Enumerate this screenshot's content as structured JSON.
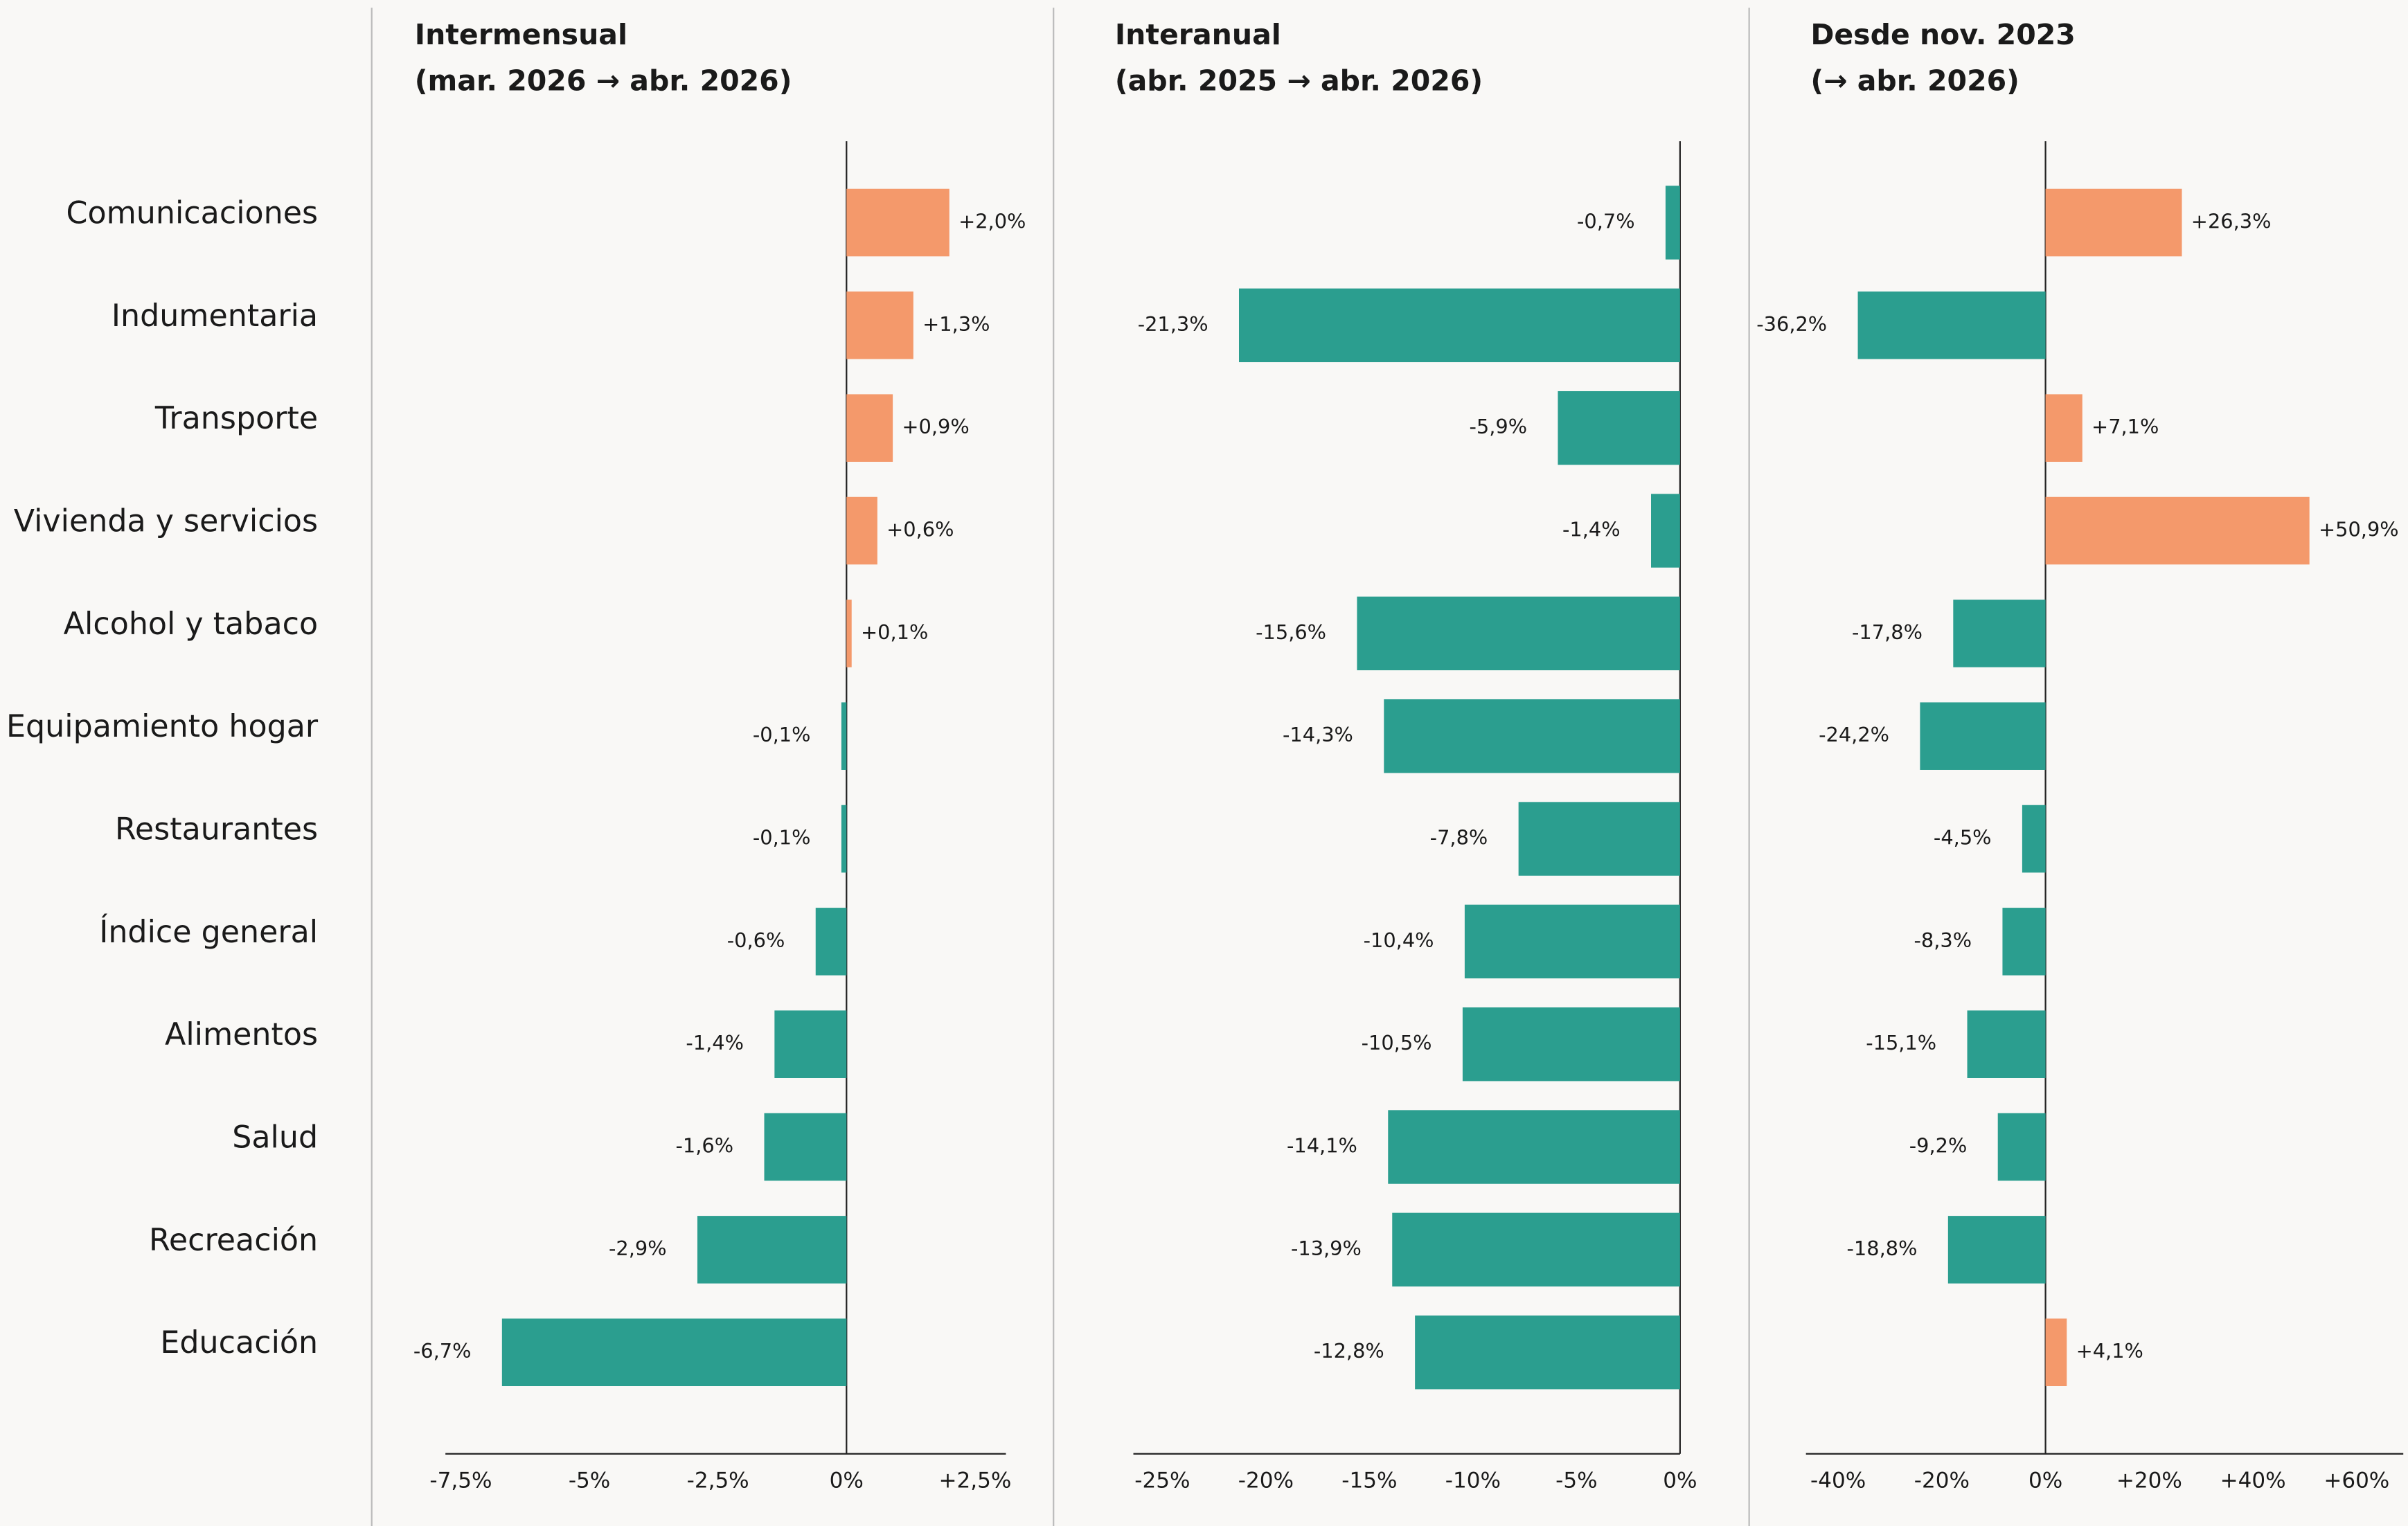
{
  "categories": [
    "Comunicaciones",
    "Indumentaria",
    "Transporte",
    "Vivienda y servicios",
    "Alcohol y tabaco",
    "Equipamiento hogar",
    "Restaurantes",
    "Índice general",
    "Alimentos",
    "Salud",
    "Recreación",
    "Educación"
  ],
  "chart_data": [
    {
      "type": "bar",
      "orientation": "horizontal",
      "title": [
        "Intermensual",
        "(mar. 2026 → abr. 2026)"
      ],
      "positive_color": "#f4996b",
      "negative_color": "#2b9e8f",
      "values": [
        2.0,
        1.3,
        0.9,
        0.6,
        0.1,
        -0.1,
        -0.1,
        -0.6,
        -1.4,
        -1.6,
        -2.9,
        -6.7
      ],
      "value_labels": [
        "+2,0%",
        "+1,3%",
        "+0,9%",
        "+0,6%",
        "+0,1%",
        "-0,1%",
        "-0,1%",
        "-0,6%",
        "-1,4%",
        "-1,6%",
        "-2,9%",
        "-6,7%"
      ],
      "xlim": [
        -7.8,
        3.1
      ],
      "xticks": [
        {
          "value": -7.5,
          "label": "-7,5%"
        },
        {
          "value": -5,
          "label": "-5%"
        },
        {
          "value": -2.5,
          "label": "-2,5%"
        },
        {
          "value": 0,
          "label": "0%"
        },
        {
          "value": 2.5,
          "label": "+2,5%"
        }
      ]
    },
    {
      "type": "bar",
      "orientation": "horizontal",
      "title": [
        "Interanual",
        "(abr. 2025 → abr. 2026)"
      ],
      "positive_color": "#f4996b",
      "negative_color": "#2b9e8f",
      "values": [
        -0.7,
        -21.3,
        -5.9,
        -1.4,
        -15.6,
        -14.3,
        -7.8,
        -10.4,
        -10.5,
        -14.1,
        -13.9,
        -12.8
      ],
      "value_labels": [
        "-0,7%",
        "-21,3%",
        "-5,9%",
        "-1,4%",
        "-15,6%",
        "-14,3%",
        "-7,8%",
        "-10,4%",
        "-10,5%",
        "-14,1%",
        "-13,9%",
        "-12,8%"
      ],
      "xlim": [
        -26.4,
        0
      ],
      "xticks": [
        {
          "value": -25,
          "label": "-25%"
        },
        {
          "value": -20,
          "label": "-20%"
        },
        {
          "value": -15,
          "label": "-15%"
        },
        {
          "value": -10,
          "label": "-10%"
        },
        {
          "value": -5,
          "label": "-5%"
        },
        {
          "value": 0,
          "label": "0%"
        }
      ]
    },
    {
      "type": "bar",
      "orientation": "horizontal",
      "title": [
        "Desde nov. 2023",
        "(→ abr. 2026)"
      ],
      "positive_color": "#f4996b",
      "negative_color": "#2b9e8f",
      "values": [
        26.3,
        -36.2,
        7.1,
        50.9,
        -17.8,
        -24.2,
        -4.5,
        -8.3,
        -15.1,
        -9.2,
        -18.8,
        4.1
      ],
      "value_labels": [
        "+26,3%",
        "-36,2%",
        "+7,1%",
        "+50,9%",
        "-17,8%",
        "-24,2%",
        "-4,5%",
        "-8,3%",
        "-15,1%",
        "-9,2%",
        "-18,8%",
        "+4,1%"
      ],
      "xlim": [
        -46.2,
        69
      ],
      "xticks": [
        {
          "value": -40,
          "label": "-40%"
        },
        {
          "value": -20,
          "label": "-20%"
        },
        {
          "value": 0,
          "label": "0%"
        },
        {
          "value": 20,
          "label": "+20%"
        },
        {
          "value": 40,
          "label": "+40%"
        },
        {
          "value": 60,
          "label": "+60%"
        }
      ]
    }
  ]
}
